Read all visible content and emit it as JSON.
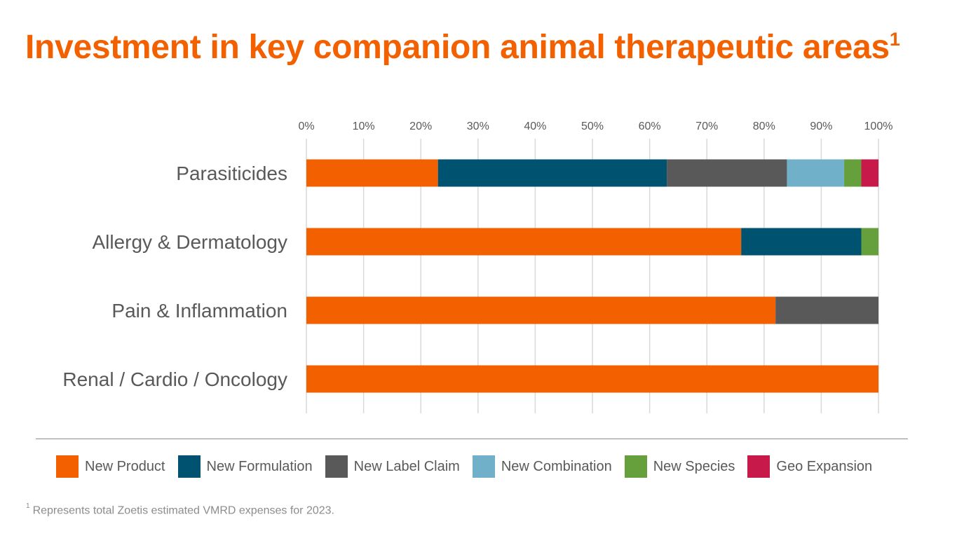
{
  "title": {
    "text": "Investment in key companion animal therapeutic areas",
    "superscript": "1"
  },
  "footnote": {
    "marker": "1",
    "text": "Represents total Zoetis estimated VMRD expenses for 2023."
  },
  "colors": {
    "title": "#f26000",
    "gridline": "#d9d9d9",
    "tick_text": "#595959"
  },
  "chart_data": {
    "type": "bar",
    "orientation": "horizontal",
    "stacked": true,
    "title": "Investment in key companion animal therapeutic areas",
    "xlabel": "",
    "ylabel": "",
    "xlim": [
      0,
      100
    ],
    "x_ticks": [
      "0%",
      "10%",
      "20%",
      "30%",
      "40%",
      "50%",
      "60%",
      "70%",
      "80%",
      "90%",
      "100%"
    ],
    "grid": true,
    "legend_position": "bottom",
    "categories": [
      "Parasiticides",
      "Allergy & Dermatology",
      "Pain & Inflammation",
      "Renal / Cardio / Oncology"
    ],
    "series": [
      {
        "name": "New Product",
        "color": "#f26000",
        "values": [
          23,
          76,
          82,
          100
        ]
      },
      {
        "name": "New Formulation",
        "color": "#005370",
        "values": [
          40,
          21,
          0,
          0
        ]
      },
      {
        "name": "New Label Claim",
        "color": "#595959",
        "values": [
          21,
          0,
          18,
          0
        ]
      },
      {
        "name": "New Combination",
        "color": "#70b0c8",
        "values": [
          10,
          0,
          0,
          0
        ]
      },
      {
        "name": "New Species",
        "color": "#66a03c",
        "values": [
          3,
          3,
          0,
          0
        ]
      },
      {
        "name": "Geo Expansion",
        "color": "#c8194b",
        "values": [
          3,
          0,
          0,
          0
        ]
      }
    ]
  }
}
